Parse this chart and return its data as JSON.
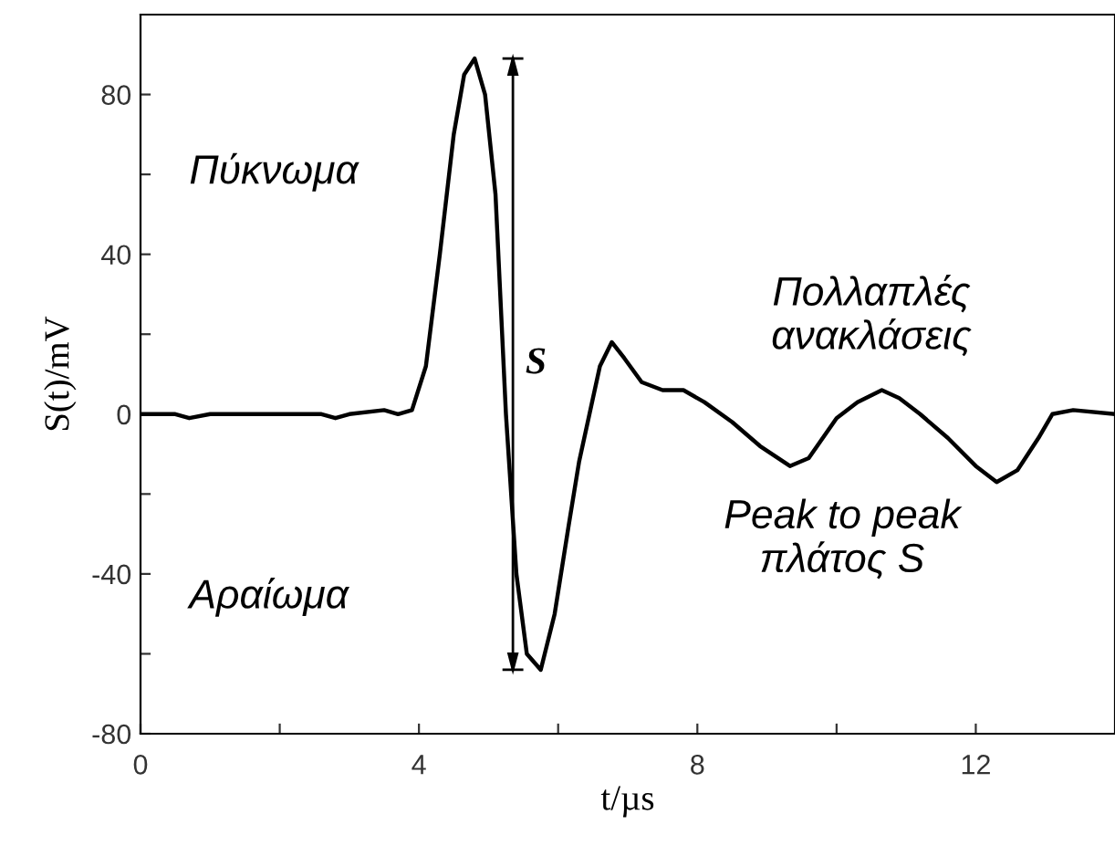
{
  "chart_data": {
    "type": "line",
    "xlabel": "t/µs",
    "ylabel": "S(t)/mV",
    "x": [
      0,
      0.5,
      0.7,
      1,
      2,
      2.6,
      2.8,
      3,
      3.5,
      3.7,
      3.9,
      4.1,
      4.3,
      4.5,
      4.65,
      4.8,
      4.95,
      5.1,
      5.25,
      5.4,
      5.55,
      5.75,
      5.95,
      6.15,
      6.3,
      6.45,
      6.6,
      6.77,
      6.95,
      7.2,
      7.5,
      7.8,
      8.1,
      8.5,
      8.9,
      9.33,
      9.6,
      10,
      10.3,
      10.65,
      10.9,
      11.2,
      11.6,
      12,
      12.3,
      12.6,
      12.9,
      13.1,
      13.4,
      14
    ],
    "series": [
      {
        "color": "#000000",
        "values": [
          0,
          0,
          -1,
          0,
          0,
          0,
          -1,
          0,
          1,
          0,
          1,
          12,
          40,
          70,
          85,
          89,
          80,
          55,
          0,
          -40,
          -60,
          -64,
          -50,
          -28,
          -12,
          0,
          12,
          18,
          14,
          8,
          6,
          6,
          3,
          -2,
          -8,
          -13,
          -11,
          -1,
          3,
          6,
          4,
          0,
          -6,
          -13,
          -17,
          -14,
          -6,
          0,
          1,
          0
        ]
      },
      {
        "type": "line",
        "name": "S",
        "color": "#000000",
        "x": [
          5.35,
          5.35
        ],
        "values": [
          89,
          -64
        ]
      }
    ],
    "xlim": [
      0,
      14
    ],
    "ylim": [
      -80,
      100
    ],
    "xticks": [
      0,
      {
        "value": 2,
        "label": null
      },
      4,
      {
        "value": 6,
        "label": null
      },
      8,
      {
        "value": 10,
        "label": null
      },
      12
    ],
    "yticks": [
      -80,
      {
        "value": -60,
        "label": null
      },
      -40,
      {
        "value": -20,
        "label": null
      },
      0,
      {
        "value": 20,
        "label": null
      },
      40,
      {
        "value": 60,
        "label": null
      },
      80
    ],
    "annotations": [
      "Πύκνωμα",
      "Πολλαπλές\nανακλάσεις",
      "Αραίωμα",
      "Peak to peak\nπλάτος S"
    ],
    "grid": false,
    "legend": false,
    "marker": "none",
    "line_style": "solid"
  }
}
